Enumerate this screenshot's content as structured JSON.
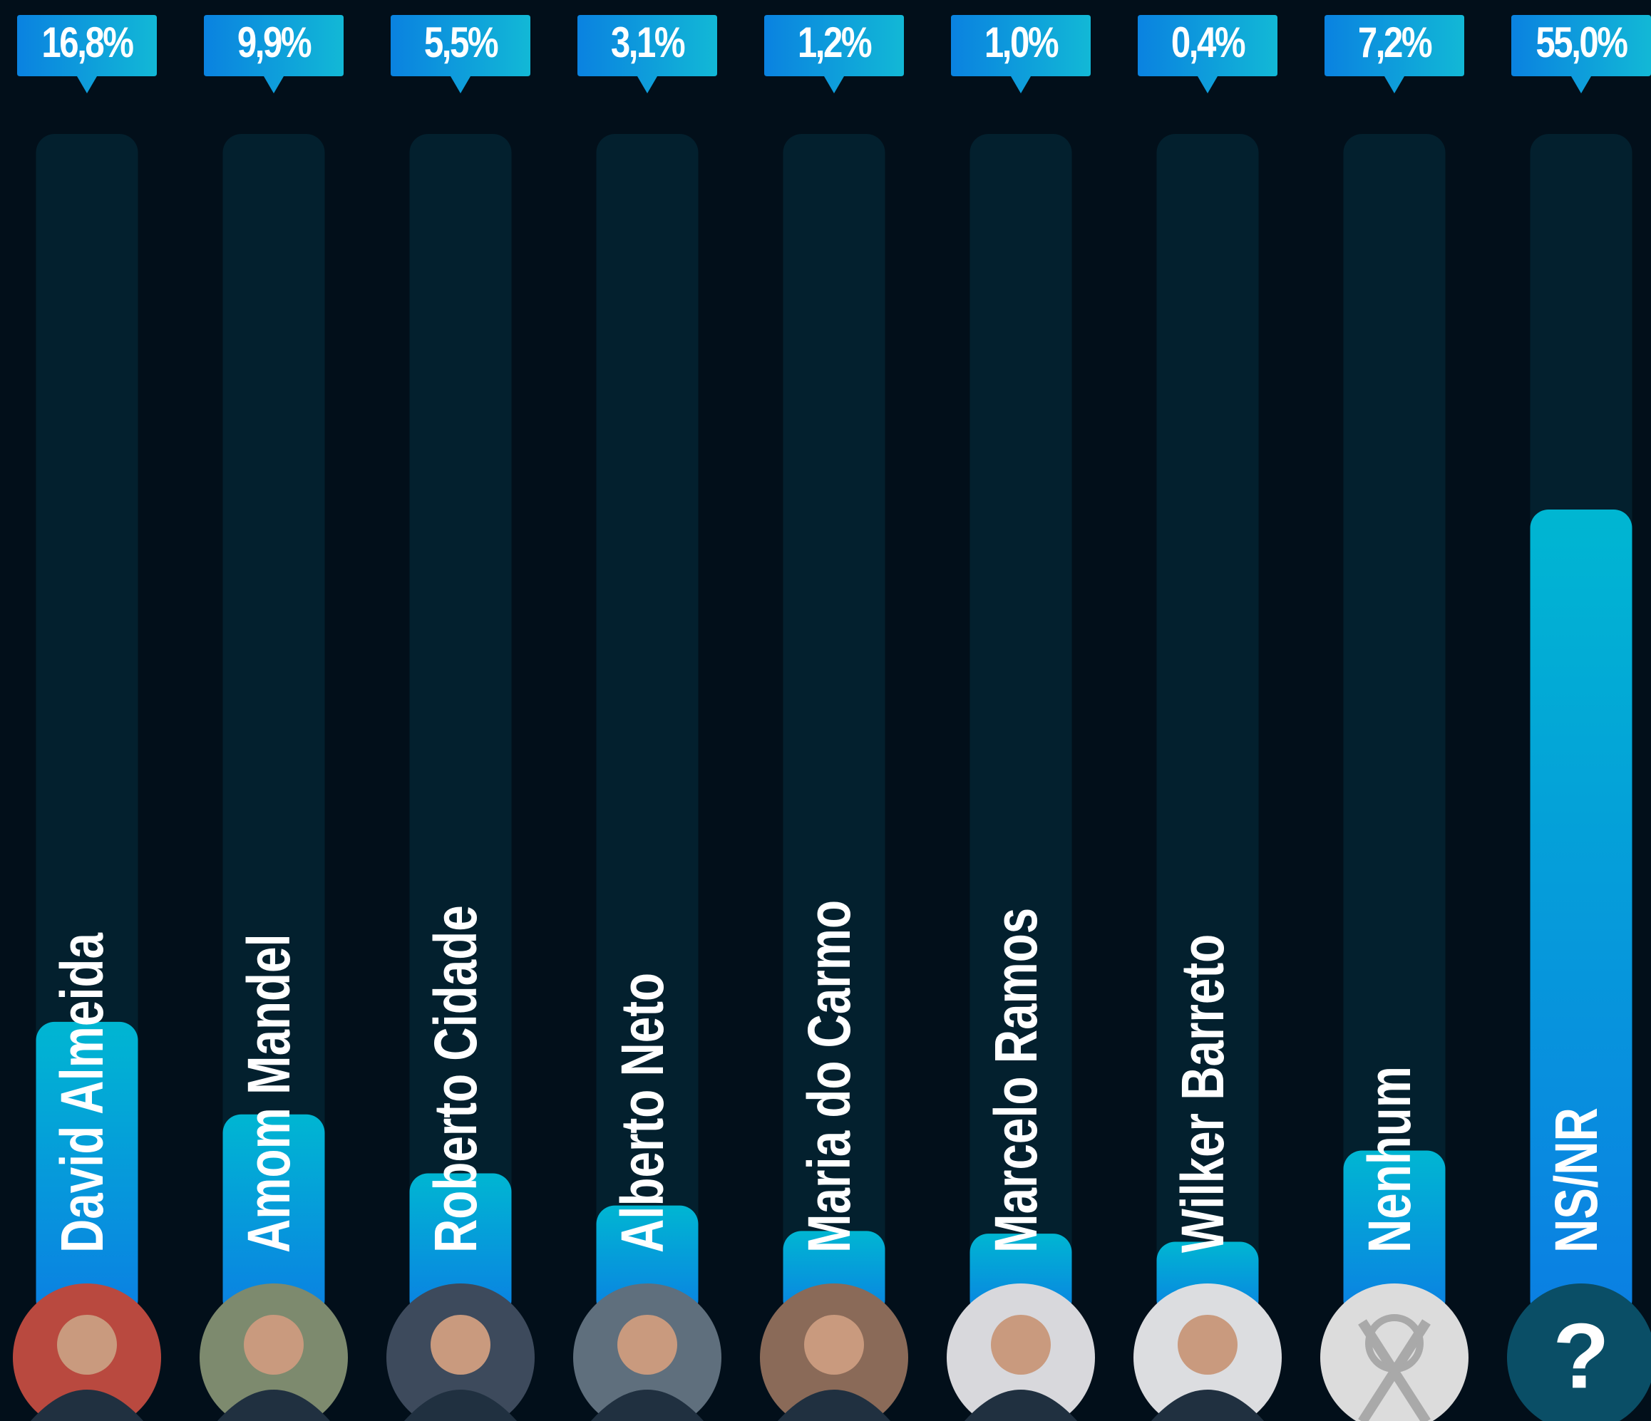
{
  "chart_data": {
    "type": "bar",
    "categories": [
      "David Almeida",
      "Amom Mandel",
      "Roberto Cidade",
      "Alberto Neto",
      "Maria do Carmo",
      "Marcelo Ramos",
      "Wilker Barreto",
      "Nenhum",
      "NS/NR"
    ],
    "values": [
      16.8,
      9.9,
      5.5,
      3.1,
      1.2,
      1.0,
      0.4,
      7.2,
      55.0
    ],
    "value_labels": [
      "16,8%",
      "9,9%",
      "5,5%",
      "3,1%",
      "1,2%",
      "1,0%",
      "0,4%",
      "7,2%",
      "55,0%"
    ],
    "ylim": [
      0,
      83
    ],
    "unknown_icon": "?"
  }
}
